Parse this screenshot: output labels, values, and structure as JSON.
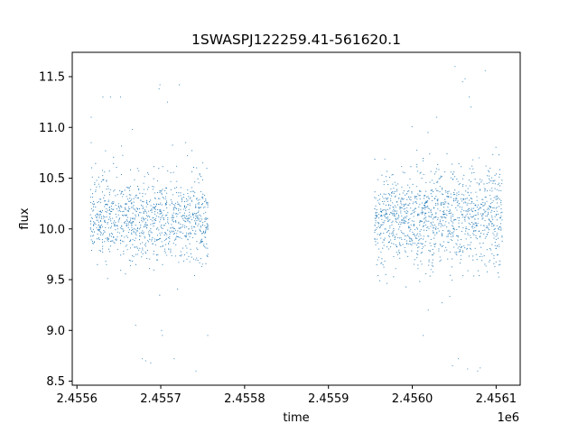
{
  "chart_data": {
    "type": "scatter",
    "title": "1SWASPJ122259.41-561620.1",
    "xlabel": "time",
    "ylabel": "flux",
    "x_offset_label": "1e6",
    "xlim": [
      2455594.4,
      2456128.7
    ],
    "ylim": [
      8.46,
      11.74
    ],
    "x_ticks": [
      2455600,
      2455700,
      2455800,
      2455900,
      2456000,
      2456100
    ],
    "x_tick_labels": [
      "2.4556",
      "2.4557",
      "2.4558",
      "2.4559",
      "2.4560",
      "2.4561"
    ],
    "y_ticks": [
      8.5,
      9.0,
      9.5,
      10.0,
      10.5,
      11.0,
      11.5
    ],
    "y_tick_labels": [
      "8.5",
      "9.0",
      "9.5",
      "10.0",
      "10.5",
      "11.0",
      "11.5"
    ],
    "grid": false,
    "point_color": "#1f77b4",
    "series": [
      {
        "segments": [
          {
            "x_start": 2455616,
            "x_end": 2455757,
            "center": 10.1,
            "spread": 0.22
          },
          {
            "x_start": 2455955,
            "x_end": 2456108,
            "center": 10.1,
            "spread": 0.25
          }
        ],
        "outlier_points": [
          [
            2455617,
            11.1
          ],
          [
            2455617,
            10.85
          ],
          [
            2455631,
            11.3
          ],
          [
            2455640,
            11.3
          ],
          [
            2455652,
            11.3
          ],
          [
            2455666,
            10.98
          ],
          [
            2455670,
            9.05
          ],
          [
            2455678,
            8.72
          ],
          [
            2455682,
            8.7
          ],
          [
            2455688,
            8.68
          ],
          [
            2455698,
            11.38
          ],
          [
            2455699,
            11.42
          ],
          [
            2455701,
            9.0
          ],
          [
            2455702,
            8.95
          ],
          [
            2455708,
            11.25
          ],
          [
            2455716,
            8.72
          ],
          [
            2455722,
            11.42
          ],
          [
            2455742,
            8.6
          ],
          [
            2455756,
            8.95
          ],
          [
            2456013,
            8.95
          ],
          [
            2456019,
            9.2
          ],
          [
            2456029,
            11.1
          ],
          [
            2456048,
            8.65
          ],
          [
            2456051,
            11.6
          ],
          [
            2456055,
            8.72
          ],
          [
            2456060,
            11.45
          ],
          [
            2456063,
            11.48
          ],
          [
            2456066,
            8.62
          ],
          [
            2456068,
            11.3
          ],
          [
            2456070,
            11.2
          ],
          [
            2456078,
            8.6
          ],
          [
            2456081,
            8.63
          ],
          [
            2456087,
            11.56
          ]
        ]
      }
    ]
  }
}
